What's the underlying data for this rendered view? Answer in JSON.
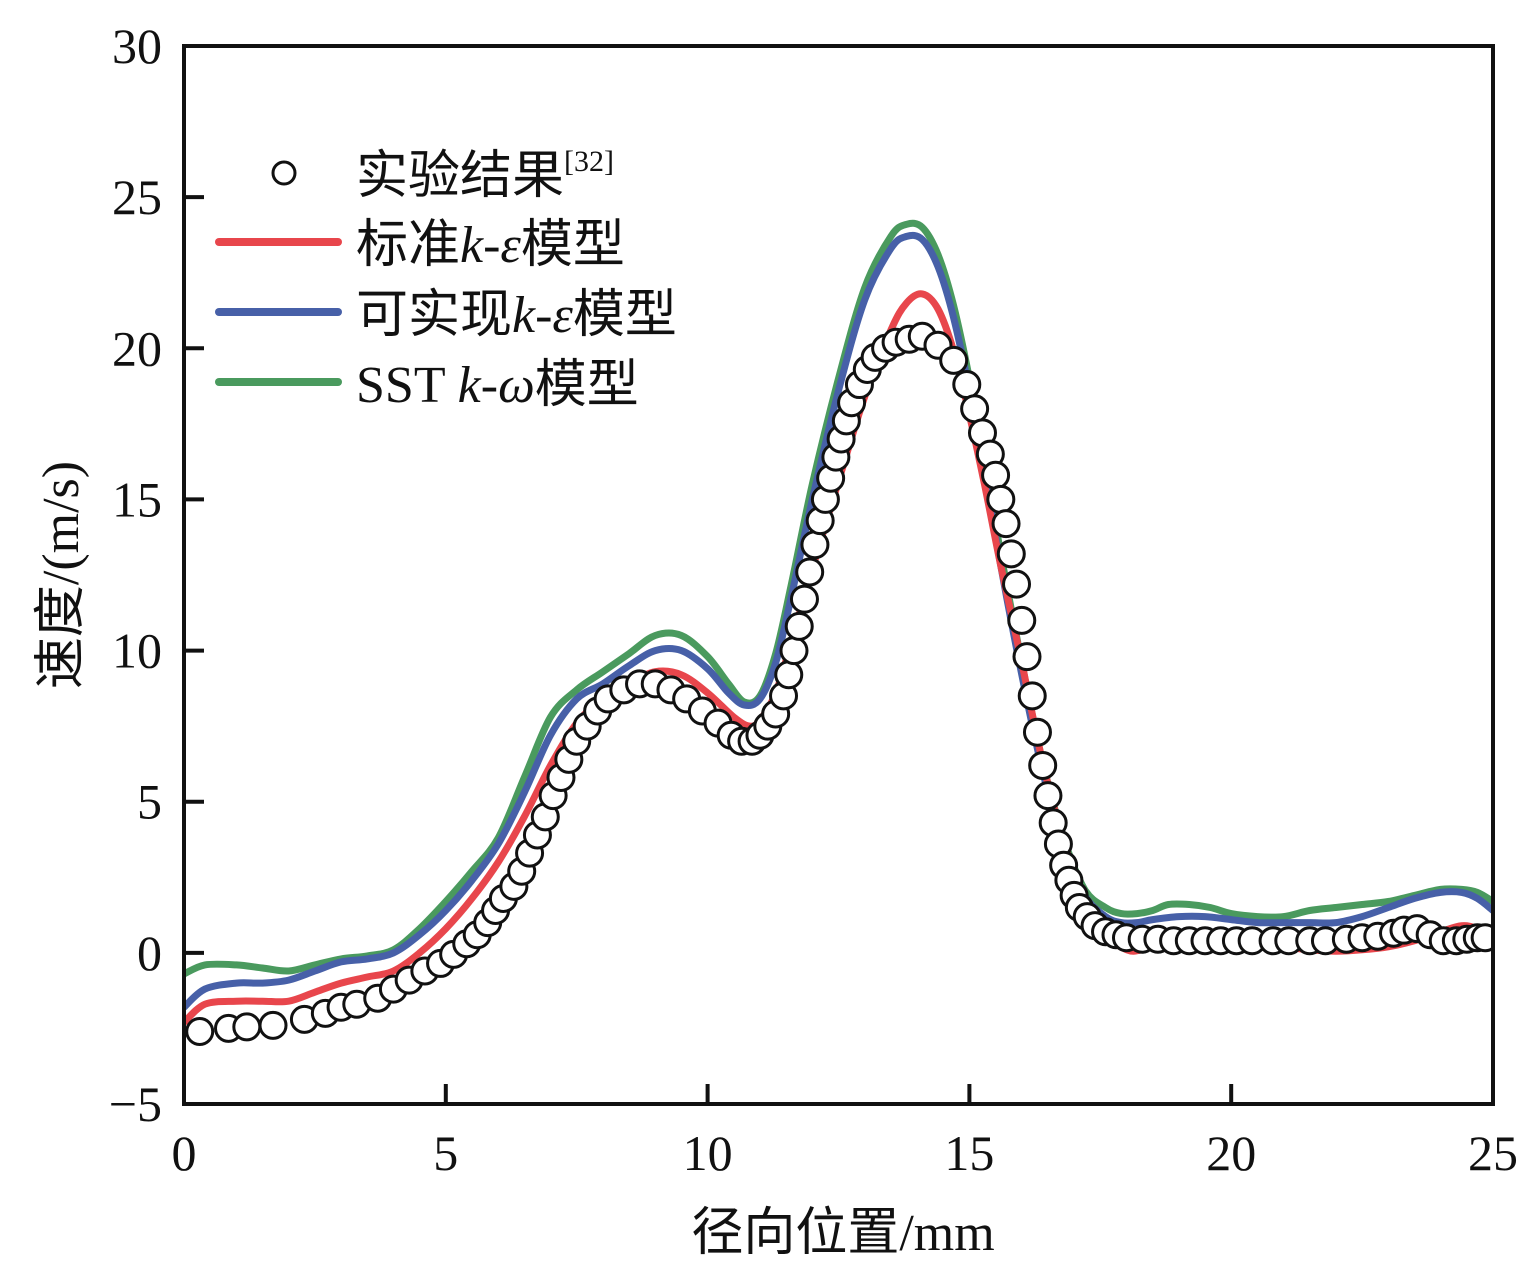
{
  "chart_data": {
    "type": "line",
    "title": "",
    "xlabel": "径向位置/mm",
    "ylabel": "速度/(m/s)",
    "xlim": [
      0,
      25
    ],
    "ylim": [
      -5,
      30
    ],
    "xticks": [
      0,
      5,
      10,
      15,
      20,
      25
    ],
    "yticks": [
      -5,
      0,
      5,
      10,
      15,
      20,
      25,
      30
    ],
    "xtick_labels": [
      "0",
      "5",
      "10",
      "15",
      "20",
      "25"
    ],
    "ytick_labels": [
      "−5",
      "0",
      "5",
      "10",
      "15",
      "20",
      "25",
      "30"
    ],
    "grid": false,
    "legend_position": "top-left",
    "legend": [
      {
        "label": "实验结果",
        "superscript": "[32]",
        "marker": "open-circle",
        "color": "#111111"
      },
      {
        "label_parts": [
          "标准",
          "k",
          "-ε",
          "模型"
        ],
        "color": "#e8464c"
      },
      {
        "label_parts": [
          "可实现",
          "k",
          "-ε",
          "模型"
        ],
        "color": "#4760a8"
      },
      {
        "label_parts": [
          "SST ",
          "k",
          "-ω",
          "模型"
        ],
        "color": "#4a9a5e"
      }
    ],
    "scatter": {
      "name": "实验结果[32]",
      "color": "#111111",
      "x": [
        0.3,
        0.85,
        1.2,
        1.7,
        2.3,
        2.7,
        3.0,
        3.3,
        3.7,
        4.0,
        4.3,
        4.6,
        4.9,
        5.15,
        5.4,
        5.6,
        5.8,
        5.95,
        6.1,
        6.3,
        6.45,
        6.6,
        6.75,
        6.9,
        7.05,
        7.2,
        7.35,
        7.5,
        7.7,
        7.9,
        8.1,
        8.4,
        8.7,
        9.0,
        9.3,
        9.6,
        9.9,
        10.2,
        10.45,
        10.65,
        10.85,
        11.0,
        11.15,
        11.3,
        11.45,
        11.55,
        11.65,
        11.75,
        11.85,
        11.95,
        12.05,
        12.15,
        12.25,
        12.35,
        12.45,
        12.55,
        12.65,
        12.75,
        12.9,
        13.05,
        13.2,
        13.4,
        13.6,
        13.85,
        14.1,
        14.4,
        14.7,
        14.95,
        15.1,
        15.25,
        15.4,
        15.5,
        15.6,
        15.7,
        15.8,
        15.9,
        16.0,
        16.1,
        16.2,
        16.3,
        16.4,
        16.5,
        16.6,
        16.7,
        16.8,
        16.9,
        17.0,
        17.1,
        17.25,
        17.4,
        17.6,
        17.8,
        18.0,
        18.3,
        18.6,
        18.9,
        19.2,
        19.5,
        19.8,
        20.1,
        20.4,
        20.8,
        21.1,
        21.5,
        21.8,
        22.2,
        22.5,
        22.8,
        23.1,
        23.3,
        23.55,
        23.8,
        24.05,
        24.3,
        24.5,
        24.7,
        24.85
      ],
      "y": [
        -2.6,
        -2.5,
        -2.45,
        -2.4,
        -2.2,
        -2.0,
        -1.8,
        -1.7,
        -1.5,
        -1.2,
        -0.9,
        -0.6,
        -0.35,
        -0.05,
        0.3,
        0.6,
        1.0,
        1.4,
        1.8,
        2.2,
        2.7,
        3.3,
        3.9,
        4.5,
        5.2,
        5.8,
        6.4,
        7.0,
        7.5,
        8.0,
        8.4,
        8.7,
        8.9,
        8.9,
        8.7,
        8.4,
        8.0,
        7.6,
        7.2,
        7.0,
        7.0,
        7.2,
        7.5,
        7.9,
        8.5,
        9.2,
        10.0,
        10.8,
        11.7,
        12.6,
        13.5,
        14.3,
        15.0,
        15.7,
        16.4,
        17.0,
        17.6,
        18.2,
        18.8,
        19.3,
        19.7,
        20.0,
        20.2,
        20.3,
        20.4,
        20.1,
        19.6,
        18.8,
        18.0,
        17.2,
        16.5,
        15.8,
        15.0,
        14.2,
        13.2,
        12.2,
        11.0,
        9.8,
        8.5,
        7.3,
        6.2,
        5.2,
        4.3,
        3.6,
        2.9,
        2.4,
        1.9,
        1.5,
        1.2,
        0.9,
        0.7,
        0.6,
        0.5,
        0.45,
        0.45,
        0.4,
        0.4,
        0.4,
        0.4,
        0.4,
        0.4,
        0.4,
        0.4,
        0.4,
        0.4,
        0.45,
        0.5,
        0.55,
        0.65,
        0.75,
        0.8,
        0.6,
        0.4,
        0.4,
        0.45,
        0.5,
        0.5
      ]
    },
    "series": [
      {
        "name": "标准k-ε模型",
        "color": "#e8464c",
        "x": [
          0,
          0.4,
          1,
          1.5,
          2,
          2.5,
          3,
          3.5,
          4,
          4.5,
          5,
          5.5,
          6,
          6.5,
          7,
          7.5,
          8,
          8.5,
          9,
          9.5,
          10,
          10.5,
          10.8,
          11,
          11.3,
          11.6,
          12,
          12.5,
          13,
          13.5,
          13.8,
          14.1,
          14.4,
          14.7,
          15,
          15.3,
          15.6,
          16,
          16.4,
          16.8,
          17.2,
          17.6,
          18,
          18.3,
          18.6,
          19,
          19.5,
          20,
          20.5,
          21,
          21.5,
          22,
          22.5,
          23,
          23.5,
          24,
          24.4,
          24.7,
          25
        ],
        "y": [
          -2.3,
          -1.7,
          -1.6,
          -1.6,
          -1.6,
          -1.3,
          -1.0,
          -0.8,
          -0.6,
          0.0,
          0.8,
          1.8,
          3.0,
          4.5,
          6.2,
          7.6,
          8.4,
          8.9,
          9.3,
          9.2,
          8.6,
          7.8,
          7.5,
          7.7,
          8.6,
          10.3,
          12.7,
          15.6,
          18.4,
          20.6,
          21.5,
          21.8,
          21.3,
          19.9,
          17.8,
          15.4,
          12.8,
          9.6,
          6.3,
          3.7,
          1.8,
          0.6,
          0.1,
          0.1,
          0.3,
          0.4,
          0.4,
          0.3,
          0.3,
          0.2,
          0.1,
          0.05,
          0.1,
          0.2,
          0.4,
          0.7,
          0.9,
          0.8,
          0.5
        ]
      },
      {
        "name": "可实现k-ε模型",
        "color": "#4760a8",
        "x": [
          0,
          0.4,
          1,
          1.5,
          2,
          2.5,
          3,
          3.5,
          4,
          4.5,
          5,
          5.5,
          6,
          6.5,
          7,
          7.5,
          8,
          8.5,
          9,
          9.5,
          10,
          10.4,
          10.7,
          11,
          11.3,
          11.6,
          12,
          12.5,
          13,
          13.5,
          13.8,
          14.1,
          14.4,
          14.7,
          15,
          15.3,
          15.6,
          16,
          16.4,
          16.8,
          17.2,
          17.6,
          17.9,
          18.2,
          18.5,
          19,
          19.5,
          20,
          20.5,
          21,
          21.5,
          22,
          22.5,
          23,
          23.5,
          24,
          24.4,
          24.7,
          25
        ],
        "y": [
          -1.8,
          -1.2,
          -1.0,
          -1.0,
          -0.9,
          -0.6,
          -0.3,
          -0.2,
          0.0,
          0.6,
          1.4,
          2.4,
          3.6,
          5.3,
          7.2,
          8.4,
          8.9,
          9.5,
          10.0,
          10.0,
          9.4,
          8.6,
          8.2,
          8.4,
          9.6,
          11.8,
          15.0,
          18.6,
          21.6,
          23.3,
          23.7,
          23.6,
          22.7,
          21.0,
          18.6,
          15.8,
          12.8,
          9.2,
          6.0,
          3.5,
          1.9,
          1.2,
          1.0,
          1.0,
          1.1,
          1.2,
          1.2,
          1.1,
          1.0,
          1.0,
          1.0,
          1.0,
          1.2,
          1.5,
          1.8,
          2.0,
          2.0,
          1.8,
          1.4
        ]
      },
      {
        "name": "SST k-ω模型",
        "color": "#4a9a5e",
        "x": [
          0,
          0.4,
          1,
          1.5,
          2,
          2.5,
          3,
          3.5,
          4,
          4.5,
          5,
          5.5,
          6,
          6.5,
          7,
          7.5,
          8,
          8.5,
          9,
          9.5,
          10,
          10.4,
          10.7,
          11,
          11.3,
          11.6,
          12,
          12.5,
          13,
          13.5,
          13.8,
          14.1,
          14.4,
          14.7,
          15,
          15.3,
          15.6,
          16,
          16.4,
          16.8,
          17.2,
          17.6,
          17.9,
          18.2,
          18.5,
          18.8,
          19.2,
          19.6,
          20,
          20.5,
          21,
          21.5,
          22,
          22.5,
          23,
          23.5,
          24,
          24.4,
          24.7,
          25
        ],
        "y": [
          -0.7,
          -0.4,
          -0.4,
          -0.5,
          -0.6,
          -0.4,
          -0.2,
          -0.1,
          0.1,
          0.8,
          1.7,
          2.7,
          3.8,
          5.8,
          7.8,
          8.7,
          9.3,
          9.9,
          10.5,
          10.5,
          9.8,
          8.9,
          8.3,
          8.5,
          9.9,
          12.2,
          15.5,
          19.0,
          22.0,
          23.7,
          24.1,
          24.0,
          23.1,
          21.4,
          19.0,
          16.2,
          13.2,
          9.6,
          6.3,
          3.8,
          2.1,
          1.5,
          1.3,
          1.3,
          1.4,
          1.6,
          1.6,
          1.5,
          1.3,
          1.2,
          1.2,
          1.4,
          1.5,
          1.6,
          1.7,
          1.9,
          2.1,
          2.1,
          2.0,
          1.7
        ]
      }
    ]
  }
}
